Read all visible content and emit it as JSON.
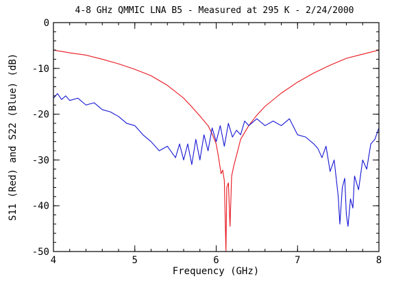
{
  "chart_data": {
    "type": "line",
    "title": "4-8 GHz QMMIC LNA B5 - Measured at 295 K - 2/24/2000",
    "xlabel": "Frequency (GHz)",
    "ylabel": "S11 (Red) and S22 (Blue) (dB)",
    "xlim": [
      4,
      8
    ],
    "ylim": [
      -50,
      0
    ],
    "xticks": [
      4,
      5,
      6,
      7,
      8
    ],
    "yticks": [
      0,
      -10,
      -20,
      -30,
      -40,
      -50
    ],
    "grid": false,
    "legend": "none",
    "series": [
      {
        "color": "#e8141c",
        "x": [
          4.0,
          4.2,
          4.4,
          4.6,
          4.8,
          5.0,
          5.2,
          5.4,
          5.5,
          5.6,
          5.7,
          5.8,
          5.9,
          5.95,
          6.0,
          6.03,
          6.06,
          6.08,
          6.1,
          6.12,
          6.13,
          6.15,
          6.17,
          6.19,
          6.22,
          6.25,
          6.3,
          6.4,
          6.5,
          6.6,
          6.8,
          7.0,
          7.2,
          7.4,
          7.6,
          7.8,
          8.0
        ],
        "values": [
          -6.0,
          -6.6,
          -7.1,
          -8.0,
          -9.0,
          -10.2,
          -11.6,
          -13.7,
          -15.1,
          -16.5,
          -18.4,
          -20.4,
          -22.5,
          -24.3,
          -26.5,
          -29.5,
          -33.0,
          -32.2,
          -34.5,
          -49.9,
          -36.0,
          -35.0,
          -44.5,
          -33.5,
          -31.0,
          -29.0,
          -25.5,
          -22.5,
          -20.2,
          -18.3,
          -15.4,
          -13.0,
          -11.0,
          -9.3,
          -7.8,
          -6.9,
          -6.0
        ]
      },
      {
        "color": "#1414d4",
        "x": [
          4.0,
          4.05,
          4.1,
          4.15,
          4.2,
          4.3,
          4.4,
          4.5,
          4.6,
          4.7,
          4.8,
          4.9,
          5.0,
          5.1,
          5.2,
          5.3,
          5.4,
          5.5,
          5.55,
          5.6,
          5.65,
          5.7,
          5.75,
          5.8,
          5.85,
          5.9,
          5.95,
          6.0,
          6.05,
          6.1,
          6.15,
          6.2,
          6.25,
          6.3,
          6.35,
          6.4,
          6.5,
          6.6,
          6.7,
          6.8,
          6.9,
          7.0,
          7.1,
          7.2,
          7.25,
          7.3,
          7.35,
          7.4,
          7.45,
          7.5,
          7.52,
          7.55,
          7.58,
          7.6,
          7.62,
          7.65,
          7.68,
          7.7,
          7.75,
          7.8,
          7.85,
          7.9,
          7.95,
          8.0
        ],
        "values": [
          -16.5,
          -15.5,
          -16.8,
          -16.0,
          -17.0,
          -16.5,
          -18.0,
          -17.5,
          -19.0,
          -19.5,
          -20.5,
          -22.0,
          -22.5,
          -24.5,
          -26.0,
          -28.0,
          -27.0,
          -29.5,
          -26.5,
          -30.0,
          -26.5,
          -31.0,
          -25.5,
          -30.0,
          -24.5,
          -28.0,
          -23.0,
          -26.0,
          -22.5,
          -27.0,
          -22.0,
          -25.0,
          -23.5,
          -24.5,
          -21.5,
          -22.5,
          -21.0,
          -22.5,
          -21.5,
          -22.5,
          -21.0,
          -24.5,
          -25.0,
          -26.5,
          -27.5,
          -29.5,
          -27.0,
          -32.5,
          -30.0,
          -38.0,
          -44.0,
          -36.0,
          -34.0,
          -42.0,
          -44.5,
          -38.5,
          -40.5,
          -33.5,
          -36.5,
          -30.0,
          -32.0,
          -26.5,
          -25.5,
          -23.0
        ]
      }
    ]
  }
}
